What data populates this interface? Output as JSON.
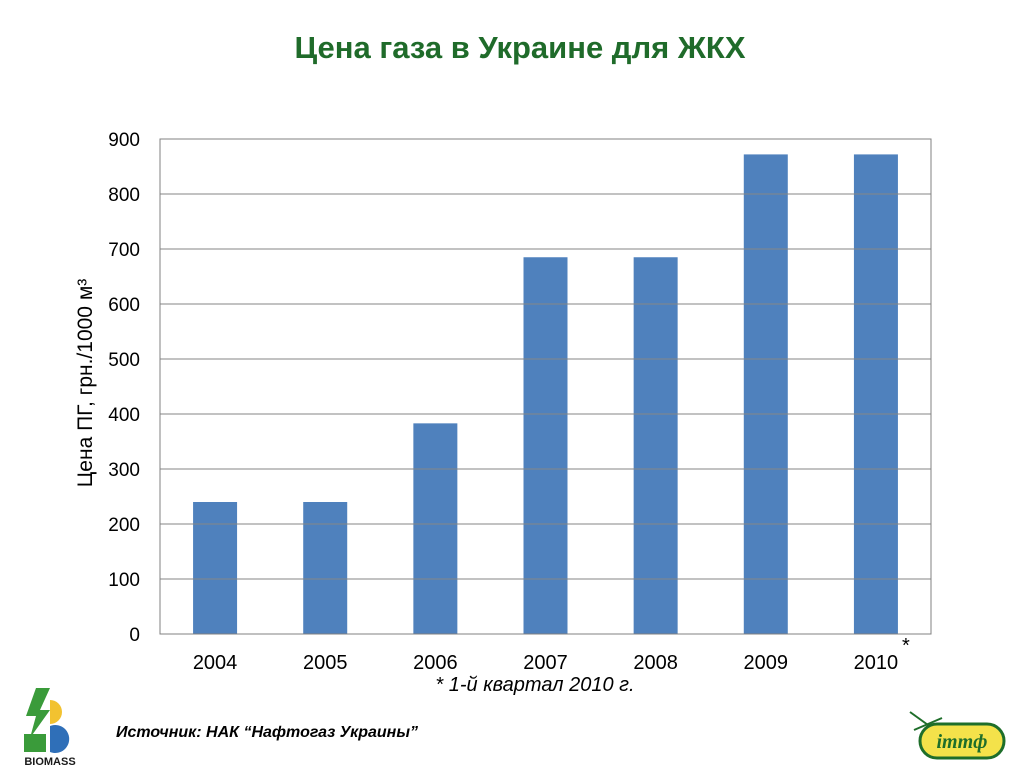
{
  "slide": {
    "title": "Цена газа в Украине для ЖКХ",
    "footnote": "* 1-й квартал 2010 г.",
    "source": "Источник: НАК “Нафтогаз Украины”",
    "asterisk": "*",
    "logo_left_text": "BIOMASS",
    "logo_right_text": "ітmф"
  },
  "chart_data": {
    "type": "bar",
    "title": "",
    "xlabel": "",
    "ylabel": "Цена ПГ, грн./1000 м³",
    "categories": [
      "2004",
      "2005",
      "2006",
      "2007",
      "2008",
      "2009",
      "2010"
    ],
    "values": [
      240,
      240,
      383,
      685,
      685,
      872,
      872
    ],
    "ylim": [
      0,
      900
    ],
    "yticks": [
      "0",
      "100",
      "200",
      "300",
      "400",
      "500",
      "600",
      "700",
      "800",
      "900"
    ],
    "grid": true,
    "legend": "none",
    "bar_color": "#4f81bd"
  }
}
